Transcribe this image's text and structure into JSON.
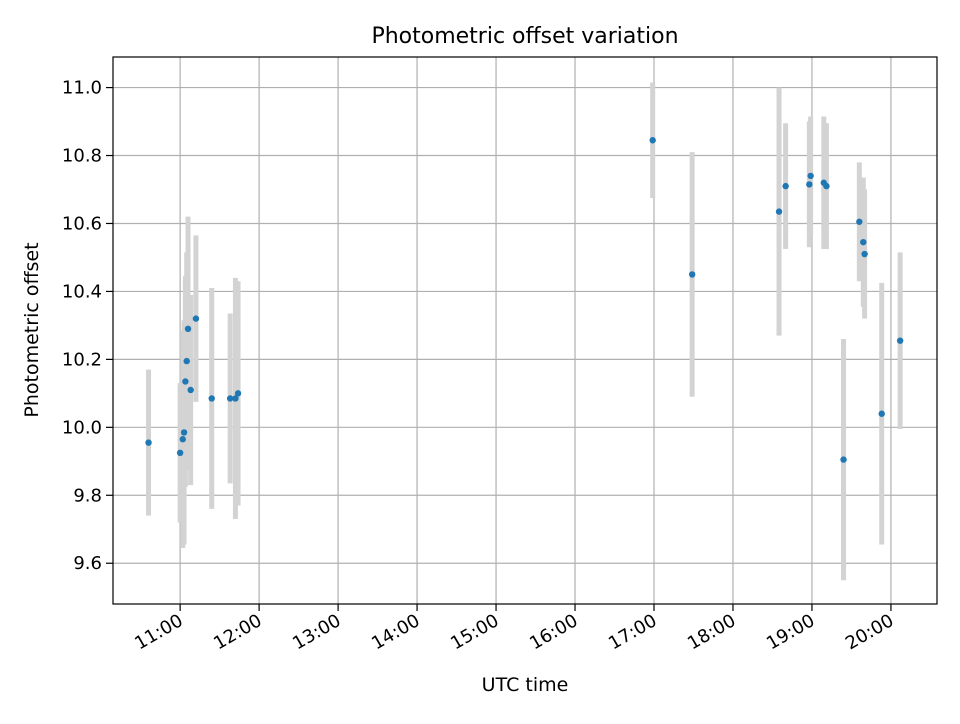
{
  "chart_data": {
    "type": "scatter",
    "title": "Photometric offset variation",
    "xlabel": "UTC time",
    "ylabel": "Photometric offset",
    "grid": true,
    "legend": "none",
    "xlim": [
      "10:09",
      "20:35"
    ],
    "ylim": [
      9.48,
      11.09
    ],
    "x_ticks": [
      "11:00",
      "12:00",
      "13:00",
      "14:00",
      "15:00",
      "16:00",
      "17:00",
      "18:00",
      "19:00",
      "20:00"
    ],
    "y_ticks": [
      "9.6",
      "9.8",
      "10.0",
      "10.2",
      "10.4",
      "10.6",
      "10.8",
      "11.0"
    ],
    "colors": {
      "points": "#1f77b4",
      "error_bars": "#d3d3d3",
      "grid": "#b0b0b0",
      "axes": "#000000"
    },
    "points": [
      {
        "x": "10:36",
        "y": 9.955,
        "err": 0.215
      },
      {
        "x": "11:00",
        "y": 9.925,
        "err": 0.205
      },
      {
        "x": "11:02",
        "y": 9.965,
        "err": 0.32
      },
      {
        "x": "11:03",
        "y": 9.985,
        "err": 0.33
      },
      {
        "x": "11:04",
        "y": 10.135,
        "err": 0.31
      },
      {
        "x": "11:05",
        "y": 10.195,
        "err": 0.32
      },
      {
        "x": "11:06",
        "y": 10.29,
        "err": 0.33
      },
      {
        "x": "11:08",
        "y": 10.11,
        "err": 0.28
      },
      {
        "x": "11:12",
        "y": 10.32,
        "err": 0.245
      },
      {
        "x": "11:24",
        "y": 10.085,
        "err": 0.325
      },
      {
        "x": "11:38",
        "y": 10.085,
        "err": 0.25
      },
      {
        "x": "11:42",
        "y": 10.085,
        "err": 0.355
      },
      {
        "x": "11:44",
        "y": 10.1,
        "err": 0.33
      },
      {
        "x": "16:59",
        "y": 10.845,
        "err": 0.17
      },
      {
        "x": "17:29",
        "y": 10.45,
        "err": 0.36
      },
      {
        "x": "18:35",
        "y": 10.635,
        "err": 0.365
      },
      {
        "x": "18:40",
        "y": 10.71,
        "err": 0.185
      },
      {
        "x": "18:58",
        "y": 10.715,
        "err": 0.185
      },
      {
        "x": "18:59",
        "y": 10.74,
        "err": 0.175
      },
      {
        "x": "19:09",
        "y": 10.72,
        "err": 0.195
      },
      {
        "x": "19:11",
        "y": 10.71,
        "err": 0.185
      },
      {
        "x": "19:24",
        "y": 9.905,
        "err": 0.355
      },
      {
        "x": "19:36",
        "y": 10.605,
        "err": 0.175
      },
      {
        "x": "19:39",
        "y": 10.545,
        "err": 0.19
      },
      {
        "x": "19:40",
        "y": 10.51,
        "err": 0.19
      },
      {
        "x": "19:53",
        "y": 10.04,
        "err": 0.385
      },
      {
        "x": "20:07",
        "y": 10.255,
        "err": 0.26
      }
    ]
  }
}
